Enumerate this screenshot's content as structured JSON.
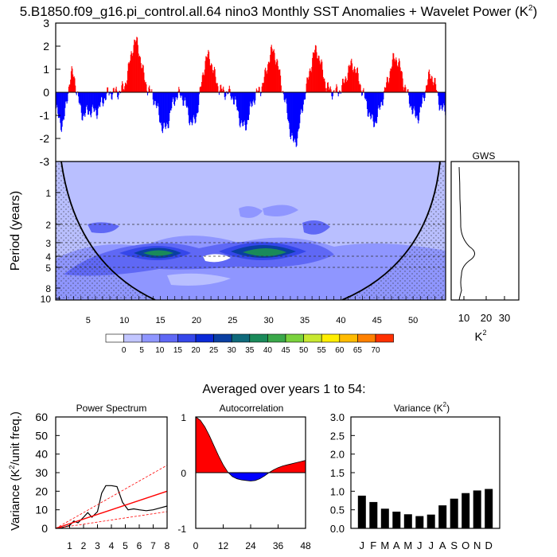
{
  "title": {
    "main": "5.B1850.f09_g16.pi_control.all.64 nino3 Monthly SST Anomalies + Wavelet Power (K",
    "sup": "2",
    "close": ")"
  },
  "colors": {
    "positive": "#ff0000",
    "negative": "#0000ff",
    "power_scale": [
      "#ffffff",
      "#c2c6ff",
      "#8f96ff",
      "#5f68f5",
      "#3547ea",
      "#0a29d8",
      "#0a3fa2",
      "#0f6a7b",
      "#1a8a5a",
      "#3aa84a",
      "#7ad23d",
      "#c8e830",
      "#ffee00",
      "#ffbb00",
      "#ff8000",
      "#ff3000"
    ]
  },
  "anomaly_panel": {
    "ylim": [
      -3,
      3
    ],
    "y_ticks": [
      "-3",
      "-2",
      "-1",
      "0",
      "1",
      "2",
      "3"
    ],
    "years": 54
  },
  "wavelet_panel": {
    "ylabel": "Period (years)",
    "y_ticks": [
      "1",
      "2",
      "3",
      "4",
      "5",
      "8",
      "10"
    ],
    "x_ticks": [
      "5",
      "10",
      "15",
      "20",
      "25",
      "30",
      "35",
      "40",
      "45",
      "50"
    ],
    "dashed_periods": [
      2,
      3,
      4,
      5
    ]
  },
  "gws_panel": {
    "title": "GWS",
    "x_ticks": [
      "10",
      "20",
      "30"
    ],
    "xlabel": "K",
    "xlabel_sup": "2"
  },
  "colorbar": {
    "labels": [
      "0",
      "5",
      "10",
      "15",
      "20",
      "25",
      "30",
      "35",
      "40",
      "45",
      "50",
      "55",
      "60",
      "65",
      "70"
    ]
  },
  "averaged_title": "Averaged over years 1 to 54:",
  "chart_data": [
    {
      "type": "line",
      "title": "Power Spectrum",
      "ylabel": "Variance (K",
      "ylabel_sup": "2",
      "ylabel_end": "/unit freq.)",
      "x_ticks": [
        "1",
        "2",
        "3",
        "4",
        "5",
        "6",
        "7",
        "8"
      ],
      "y_ticks": [
        "0",
        "10",
        "20",
        "30",
        "40",
        "50",
        "60"
      ],
      "xlim": [
        0,
        8
      ],
      "ylim": [
        0,
        60
      ],
      "series": [
        {
          "x": [
            0,
            0.5,
            1,
            1.3,
            1.6,
            2,
            2.3,
            2.6,
            3,
            3.3,
            3.6,
            4,
            4.4,
            4.8,
            5.2,
            5.6,
            6,
            6.5,
            7,
            7.5,
            8
          ],
          "y": [
            0,
            0.5,
            1.5,
            4,
            3,
            6,
            8.5,
            6,
            9,
            19,
            23,
            23,
            22.5,
            14,
            10,
            10.5,
            10,
            9.5,
            10,
            11,
            12
          ]
        },
        {
          "x": [
            0,
            8
          ],
          "y": [
            0,
            20
          ]
        },
        {
          "x": [
            0,
            8
          ],
          "y": [
            0,
            34
          ]
        },
        {
          "x": [
            0,
            8
          ],
          "y": [
            0,
            9
          ]
        }
      ]
    },
    {
      "type": "area",
      "title": "Autocorrelation",
      "x_ticks": [
        "0",
        "12",
        "24",
        "36",
        "48"
      ],
      "y_ticks": [
        "-1",
        "0",
        "1"
      ],
      "xlim": [
        0,
        48
      ],
      "ylim": [
        -1,
        1
      ],
      "series": [
        {
          "x": [
            0,
            2,
            4,
            6,
            8,
            10,
            12,
            14,
            16,
            18,
            20,
            22,
            24,
            26,
            28,
            30,
            32,
            34,
            36,
            38,
            40,
            42,
            44,
            46,
            48
          ],
          "y": [
            1.0,
            0.94,
            0.82,
            0.66,
            0.48,
            0.3,
            0.14,
            0.01,
            -0.07,
            -0.11,
            -0.13,
            -0.14,
            -0.15,
            -0.14,
            -0.11,
            -0.06,
            0.0,
            0.05,
            0.09,
            0.12,
            0.14,
            0.16,
            0.18,
            0.2,
            0.22
          ]
        }
      ]
    },
    {
      "type": "bar",
      "title": "Variance (K",
      "title_sup": "2",
      "title_end": ")",
      "categories": [
        "J",
        "F",
        "M",
        "A",
        "M",
        "J",
        "J",
        "A",
        "S",
        "O",
        "N",
        "D"
      ],
      "values": [
        0.88,
        0.71,
        0.53,
        0.45,
        0.38,
        0.33,
        0.37,
        0.62,
        0.8,
        0.95,
        1.02,
        1.06
      ],
      "y_ticks": [
        "0.0",
        "0.5",
        "1.0",
        "1.5",
        "2.0",
        "2.5",
        "3.0"
      ],
      "ylim": [
        0,
        3
      ]
    }
  ]
}
